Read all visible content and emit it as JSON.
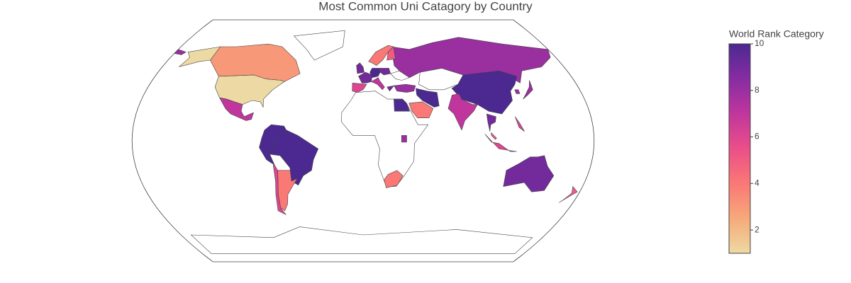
{
  "chart_data": {
    "type": "choropleth",
    "title": "Most Common Uni Catagory by Country",
    "colorbar_title": "World Rank Category",
    "clim": [
      1,
      10
    ],
    "cticks": [
      2,
      4,
      6,
      8,
      10
    ],
    "colorscale": [
      "#edd9a3",
      "#f6a97a",
      "#fa7876",
      "#ea4f88",
      "#c0369d",
      "#872ca2",
      "#4b2991"
    ],
    "values": [
      1,
      3,
      7,
      10,
      10,
      4,
      6,
      10,
      4,
      8,
      4,
      10,
      8,
      8,
      10,
      7,
      8,
      8,
      9,
      5,
      6,
      6,
      9,
      5,
      9,
      9,
      6,
      10,
      7,
      9,
      4,
      5,
      9
    ]
  }
}
